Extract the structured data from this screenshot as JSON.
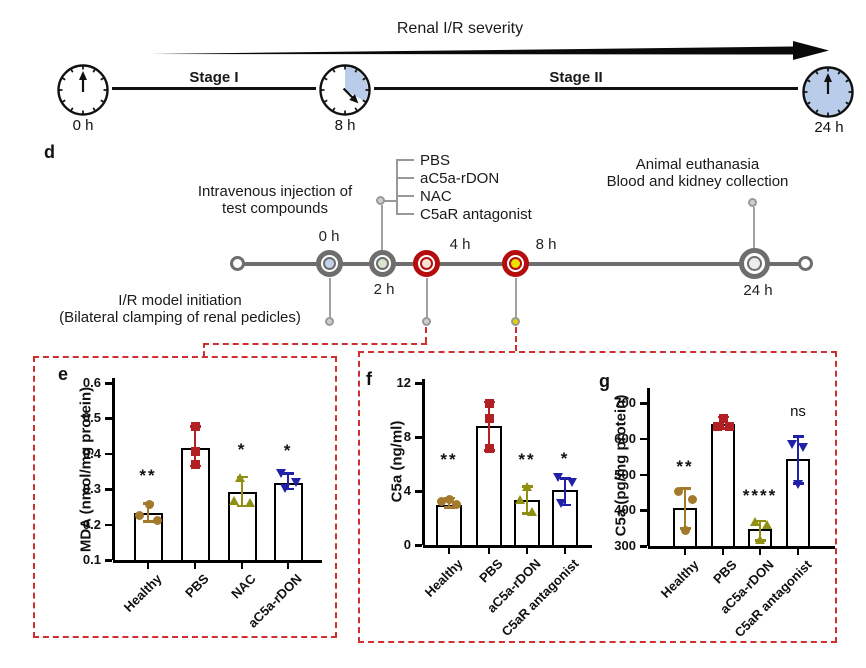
{
  "figure": {
    "top_timeline": {
      "title": "Renal I/R severity",
      "stage1_label": "Stage I",
      "stage2_label": "Stage II",
      "clock_labels": [
        "0 h",
        "8 h",
        "24 h"
      ],
      "clock_fill": "#b9cce9"
    },
    "panel_d": {
      "label": "d",
      "injection_line1": "Intravenous injection of",
      "injection_line2": "test compounds",
      "compounds": [
        "PBS",
        "aC5a-rDON",
        "NAC",
        "C5aR antagonist"
      ],
      "euthanasia_line1": "Animal euthanasia",
      "euthanasia_line2": "Blood and kidney collection",
      "ir_line1": "I/R model initiation",
      "ir_line2": "(Bilateral clamping of renal pedicles)",
      "timepoints": [
        {
          "label": "0 h",
          "ring": "#6e6e6e",
          "fill": "#c3d2ec"
        },
        {
          "label": "2 h",
          "ring": "#6e6e6e",
          "fill": "#d6e5cb"
        },
        {
          "label": "4 h",
          "ring": "#b50d0d",
          "fill": "#f6e4d5"
        },
        {
          "label": "8 h",
          "ring": "#b50d0d",
          "fill": "#f0df00"
        },
        {
          "label": "24 h",
          "ring": "#6e6e6e",
          "fill": "#ececec"
        }
      ]
    }
  },
  "chart_data": [
    {
      "panel": "e",
      "type": "bar",
      "ylabel": "MDA (nmol/mg protein)",
      "ylim": [
        0.1,
        0.6
      ],
      "yticks": [
        0.1,
        0.2,
        0.3,
        0.4,
        0.5,
        0.6
      ],
      "ytick_labels": [
        "0.1",
        "0.2",
        "0.3",
        "0.4",
        "0.5",
        "0.6"
      ],
      "categories": [
        "Healthy",
        "PBS",
        "NAC",
        "aC5a-rDON"
      ],
      "bar_means": [
        0.232,
        0.417,
        0.292,
        0.318
      ],
      "error_low": [
        0.208,
        0.365,
        0.252,
        0.3
      ],
      "error_high": [
        0.26,
        0.478,
        0.335,
        0.345
      ],
      "points": [
        [
          {
            "dx": -9,
            "v": 0.227
          },
          {
            "dx": 1,
            "v": 0.258
          },
          {
            "dx": 9,
            "v": 0.211
          }
        ],
        [
          {
            "dx": 0,
            "v": 0.478
          },
          {
            "dx": 0,
            "v": 0.407
          },
          {
            "dx": 0,
            "v": 0.369
          }
        ],
        [
          {
            "dx": -2,
            "v": 0.333
          },
          {
            "dx": -8,
            "v": 0.268
          },
          {
            "dx": 8,
            "v": 0.262
          }
        ],
        [
          {
            "dx": -7,
            "v": 0.345
          },
          {
            "dx": 8,
            "v": 0.32
          },
          {
            "dx": -3,
            "v": 0.303
          }
        ]
      ],
      "significance": [
        "**",
        "",
        "*",
        "*"
      ],
      "sig_y": [
        0.338,
        null,
        0.412,
        0.408
      ],
      "group_colors": [
        "#a3792b",
        "#b22024",
        "#8f8f12",
        "#2121a8"
      ],
      "markers": [
        "circle",
        "square",
        "triangle-up",
        "triangle-down"
      ]
    },
    {
      "panel": "f",
      "type": "bar",
      "ylabel": "C5a (ng/ml)",
      "ylim": [
        0,
        12
      ],
      "yticks": [
        0,
        4,
        8,
        12
      ],
      "ytick_labels": [
        "0",
        "4",
        "8",
        "12"
      ],
      "categories": [
        "Healthy",
        "PBS",
        "aC5a-rDON",
        "C5aR antagonist"
      ],
      "bar_means": [
        3.0,
        8.85,
        3.3,
        4.05
      ],
      "error_low": [
        2.75,
        7.0,
        2.3,
        2.95
      ],
      "error_high": [
        3.5,
        10.6,
        4.35,
        4.95
      ],
      "points": [
        [
          {
            "dx": -8,
            "v": 3.25
          },
          {
            "dx": 0,
            "v": 3.4
          },
          {
            "dx": 7,
            "v": 3.0
          }
        ],
        [
          {
            "dx": 0,
            "v": 10.45
          },
          {
            "dx": 0,
            "v": 9.35
          },
          {
            "dx": 0,
            "v": 7.15
          }
        ],
        [
          {
            "dx": 0,
            "v": 4.3
          },
          {
            "dx": -7,
            "v": 3.35
          },
          {
            "dx": 5,
            "v": 2.45
          }
        ],
        [
          {
            "dx": -7,
            "v": 5.0
          },
          {
            "dx": 7,
            "v": 4.6
          },
          {
            "dx": -4,
            "v": 3.05
          }
        ]
      ],
      "significance": [
        "**",
        "",
        "**",
        "*"
      ],
      "sig_y": [
        6.3,
        null,
        6.3,
        6.4
      ],
      "group_colors": [
        "#a3792b",
        "#b22024",
        "#8f8f12",
        "#2121a8"
      ],
      "markers": [
        "circle",
        "square",
        "triangle-up",
        "triangle-down"
      ]
    },
    {
      "panel": "g",
      "type": "bar",
      "ylabel": "C5a (pg/mg protein)",
      "ylim": [
        300,
        700
      ],
      "yticks": [
        300,
        400,
        500,
        600,
        700
      ],
      "ytick_labels": [
        "300",
        "400",
        "500",
        "600",
        "700"
      ],
      "categories": [
        "Healthy",
        "PBS",
        "aC5a-rDON",
        "C5aR antagonist"
      ],
      "bar_means": [
        406,
        640,
        347,
        542
      ],
      "error_low": [
        348,
        628,
        315,
        474
      ],
      "error_high": [
        462,
        661,
        371,
        607
      ],
      "points": [
        [
          {
            "dx": -7,
            "v": 453
          },
          {
            "dx": 7,
            "v": 430
          },
          {
            "dx": 0,
            "v": 342
          }
        ],
        [
          {
            "dx": 0,
            "v": 658
          },
          {
            "dx": -6,
            "v": 633
          },
          {
            "dx": 6,
            "v": 633
          }
        ],
        [
          {
            "dx": -5,
            "v": 369
          },
          {
            "dx": 7,
            "v": 361
          },
          {
            "dx": 0,
            "v": 319
          }
        ],
        [
          {
            "dx": -6,
            "v": 583
          },
          {
            "dx": 5,
            "v": 575
          },
          {
            "dx": 0,
            "v": 472
          }
        ]
      ],
      "significance": [
        "**",
        "",
        "****",
        "ns"
      ],
      "sig_y": [
        520,
        null,
        440,
        672
      ],
      "group_colors": [
        "#a3792b",
        "#b22024",
        "#8f8f12",
        "#2121a8"
      ],
      "markers": [
        "circle",
        "square",
        "triangle-up",
        "triangle-down"
      ]
    }
  ]
}
